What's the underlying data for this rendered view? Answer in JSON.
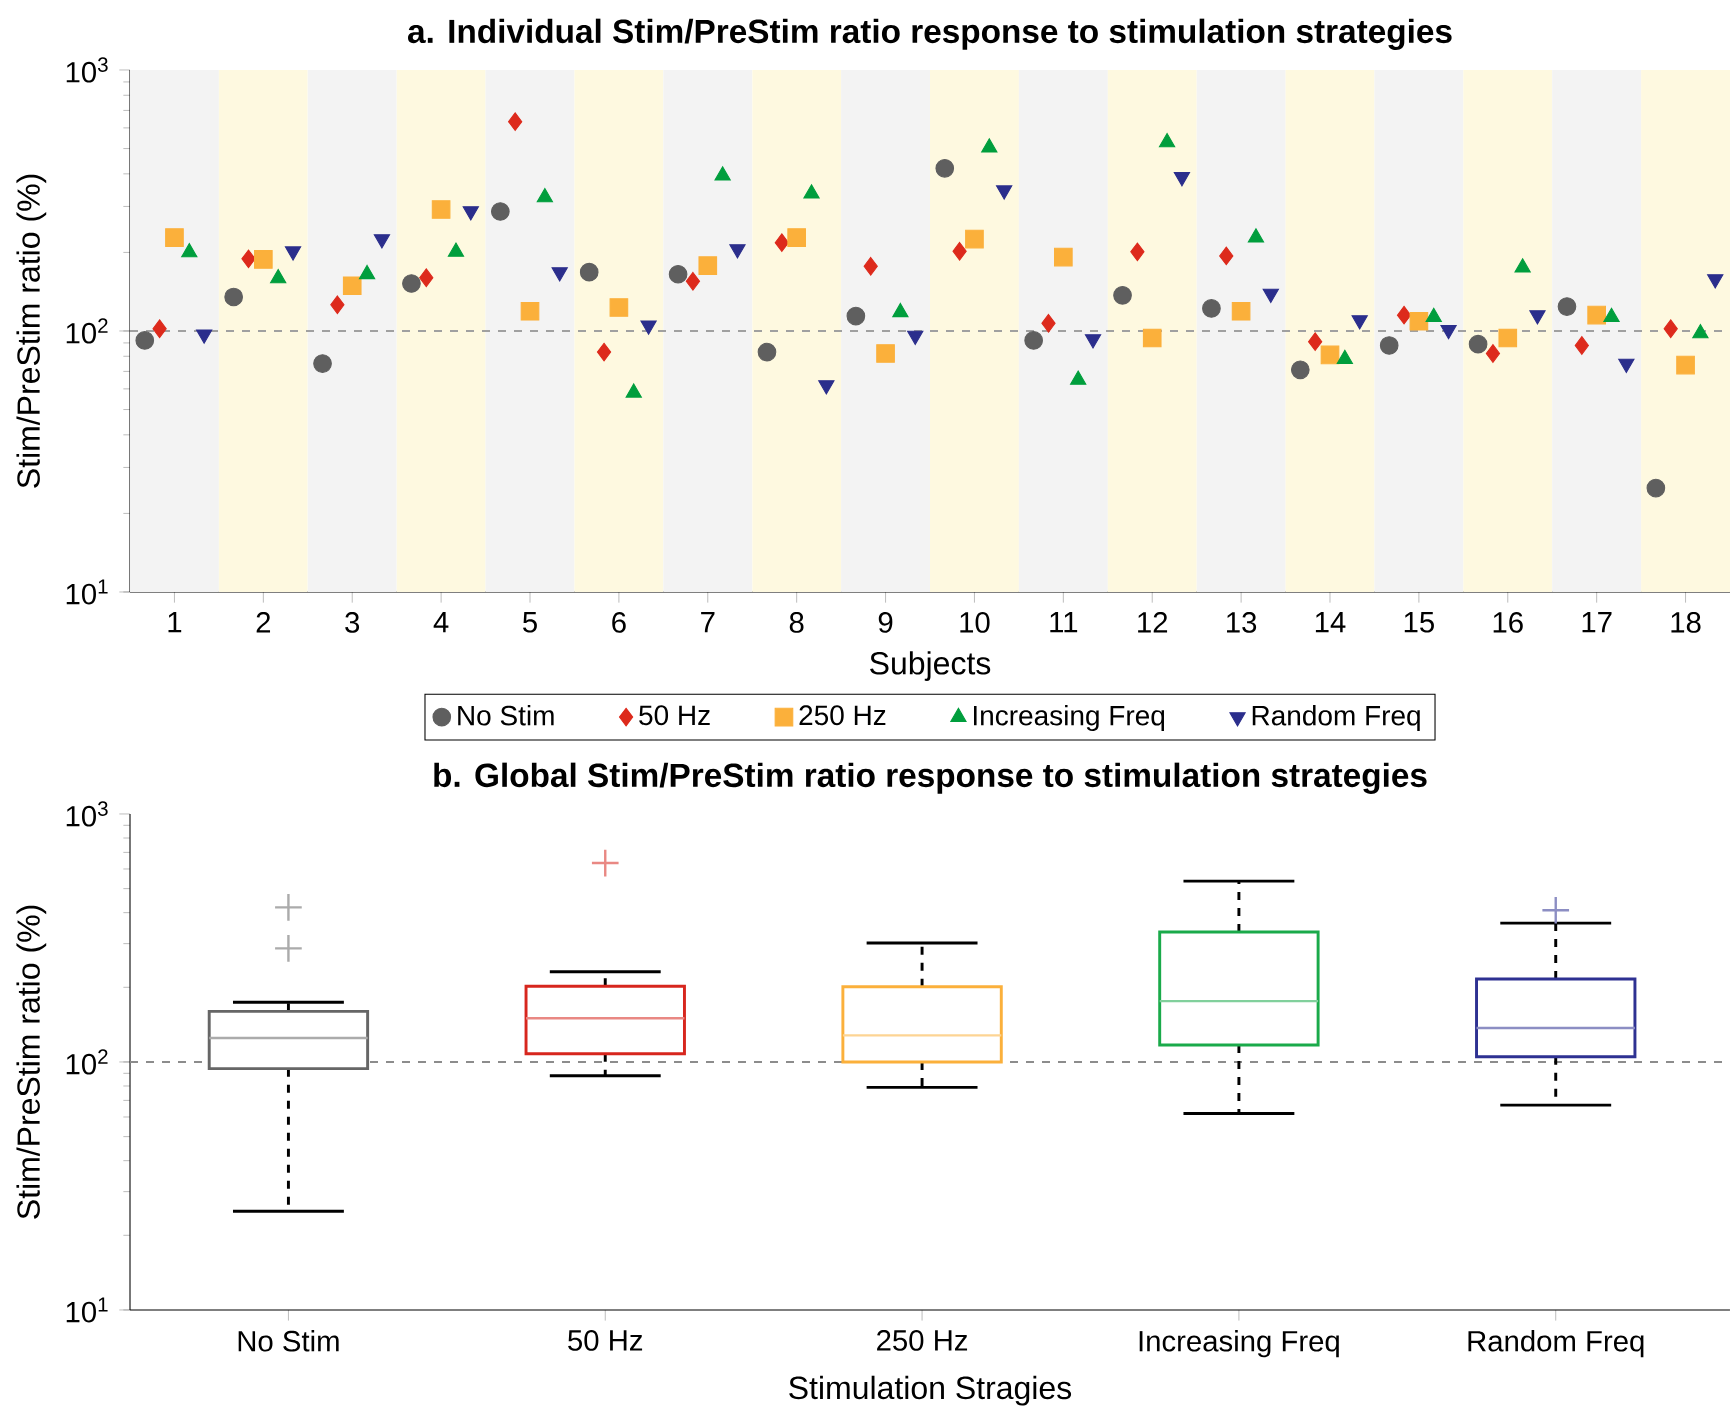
{
  "chart_data": [
    {
      "type": "scatter",
      "title": "a. Individual Stim/PreStim ratio response to stimulation strategies",
      "xlabel": "Subjects",
      "ylabel": "Stim/PreStim ratio (%)",
      "categories": [
        "1",
        "2",
        "3",
        "4",
        "5",
        "6",
        "7",
        "8",
        "9",
        "10",
        "11",
        "12",
        "13",
        "14",
        "15",
        "16",
        "17",
        "18"
      ],
      "log": "y",
      "ylim": [
        10,
        1000
      ],
      "yticks": [
        {
          "value": 10,
          "label": "10$^{1}$"
        },
        {
          "value": 100,
          "label": "10$^{2}$"
        },
        {
          "value": 1000,
          "label": "10$^{3}$"
        }
      ],
      "legend": "bottom",
      "grid": false,
      "series": [
        {
          "name": "No Stim",
          "color": "#5f5f5f",
          "marker": "circle",
          "values": [
            92,
            135,
            75,
            152,
            287,
            168,
            165,
            83,
            114,
            420,
            92,
            137,
            122,
            71,
            88,
            89,
            124,
            25
          ]
        },
        {
          "name": "50 Hz",
          "color": "#dd2a1c",
          "marker": "diamond",
          "values": [
            102,
            189,
            126,
            160,
            634,
            83,
            155,
            218,
            177,
            202,
            107,
            201,
            194,
            91,
            115,
            82,
            88,
            102
          ]
        },
        {
          "name": "250 Hz",
          "color": "#fbb03b",
          "marker": "square",
          "values": [
            228,
            188,
            149,
            292,
            119,
            123,
            178,
            228,
            82,
            225,
            192,
            94,
            119,
            81,
            109,
            94,
            115,
            74
          ]
        },
        {
          "name": "Increasing Freq",
          "color": "#009e3d",
          "marker": "triangle",
          "values": [
            200,
            159,
            165,
            201,
            325,
            58,
            394,
            336,
            118,
            504,
            65,
            528,
            228,
            78,
            113,
            175,
            113,
            98
          ]
        },
        {
          "name": "Random Freq",
          "color": "#2b2e8c",
          "marker": "triangle_down",
          "values": [
            97,
            202,
            225,
            288,
            168,
            105,
            206,
            62,
            96,
            346,
            93,
            389,
            139,
            110,
            101,
            115,
            75,
            158
          ]
        }
      ],
      "ref_lines": [
        {
          "axis": "y",
          "value": 100,
          "color": "#a0a0a0",
          "line_style": "dashed"
        }
      ],
      "bands": [
        {
          "axis": "x",
          "from": "1",
          "to": "1",
          "color": "#f3f3f3"
        },
        {
          "axis": "x",
          "from": "2",
          "to": "2",
          "color": "#fef9e0"
        },
        {
          "axis": "x",
          "from": "3",
          "to": "3",
          "color": "#f3f3f3"
        },
        {
          "axis": "x",
          "from": "4",
          "to": "4",
          "color": "#fef9e0"
        },
        {
          "axis": "x",
          "from": "5",
          "to": "5",
          "color": "#f3f3f3"
        },
        {
          "axis": "x",
          "from": "6",
          "to": "6",
          "color": "#fef9e0"
        },
        {
          "axis": "x",
          "from": "7",
          "to": "7",
          "color": "#f3f3f3"
        },
        {
          "axis": "x",
          "from": "8",
          "to": "8",
          "color": "#fef9e0"
        },
        {
          "axis": "x",
          "from": "9",
          "to": "9",
          "color": "#f3f3f3"
        },
        {
          "axis": "x",
          "from": "10",
          "to": "10",
          "color": "#fef9e0"
        },
        {
          "axis": "x",
          "from": "11",
          "to": "11",
          "color": "#f3f3f3"
        },
        {
          "axis": "x",
          "from": "12",
          "to": "12",
          "color": "#fef9e0"
        },
        {
          "axis": "x",
          "from": "13",
          "to": "13",
          "color": "#f3f3f3"
        },
        {
          "axis": "x",
          "from": "14",
          "to": "14",
          "color": "#fef9e0"
        },
        {
          "axis": "x",
          "from": "15",
          "to": "15",
          "color": "#f3f3f3"
        },
        {
          "axis": "x",
          "from": "16",
          "to": "16",
          "color": "#fef9e0"
        },
        {
          "axis": "x",
          "from": "17",
          "to": "17",
          "color": "#f3f3f3"
        },
        {
          "axis": "x",
          "from": "18",
          "to": "18",
          "color": "#fef9e0"
        }
      ]
    },
    {
      "type": "box",
      "title": "b. Global Stim/PreStim ratio response to stimulation strategies",
      "xlabel": "Stimulation Stragies",
      "ylabel": "Stim/PreStim ratio (%)",
      "categories": [
        "No Stim",
        "50 Hz",
        "250 Hz",
        "Increasing Freq",
        "Random Freq"
      ],
      "log": "y",
      "ylim": [
        10,
        1000
      ],
      "yticks": [
        {
          "value": 10,
          "label": "10$^{1}$"
        },
        {
          "value": 100,
          "label": "10$^{2}$"
        },
        {
          "value": 1000,
          "label": "10$^{3}$"
        }
      ],
      "colors": [
        "#666666",
        "#d7261e",
        "#fbb03b",
        "#1aaa4a",
        "#2e3192"
      ],
      "boxes": [
        {
          "low": 25,
          "q1": 94,
          "median": 125,
          "q3": 160,
          "high": 174,
          "outliers": [
            420,
            287
          ]
        },
        {
          "low": 88,
          "q1": 108,
          "median": 150,
          "q3": 202,
          "high": 231,
          "outliers": [
            634
          ]
        },
        {
          "low": 79,
          "q1": 100,
          "median": 128,
          "q3": 201,
          "high": 302
        },
        {
          "low": 62,
          "q1": 117,
          "median": 176,
          "q3": 334,
          "high": 536
        },
        {
          "low": 67,
          "q1": 105,
          "median": 137,
          "q3": 216,
          "high": 363,
          "outliers": [
            409
          ]
        }
      ],
      "ref_lines": [
        {
          "axis": "y",
          "value": 100,
          "color": "#8c8c8c",
          "line_style": "dashed"
        }
      ]
    }
  ]
}
